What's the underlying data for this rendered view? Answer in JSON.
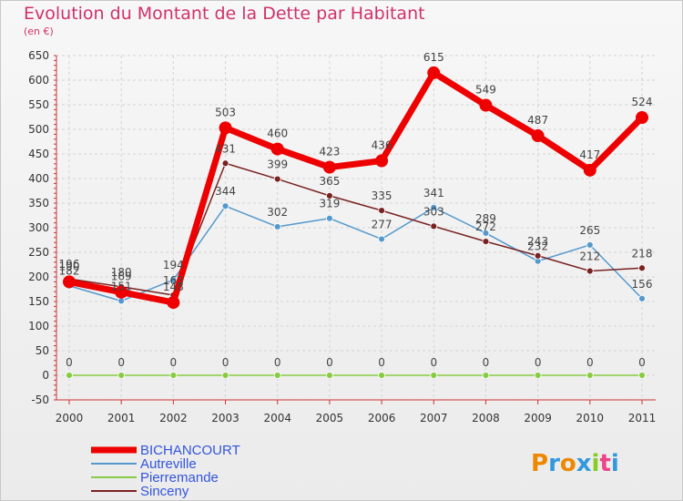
{
  "title": "Evolution du Montant de la Dette par Habitant",
  "subtitle": "(en €)",
  "logo": "Proxiti",
  "colors": {
    "title": "#d0306a",
    "bichancourt": "#ee0000",
    "autreville": "#5599cc",
    "pierremande": "#88cc44",
    "sinceny": "#7a2222",
    "legend_text": "#3355dd"
  },
  "chart_data": {
    "type": "line",
    "x": [
      "2000",
      "2001",
      "2002",
      "2003",
      "2004",
      "2005",
      "2006",
      "2007",
      "2008",
      "2009",
      "2010",
      "2011"
    ],
    "ylim": [
      -50,
      650
    ],
    "yticks": [
      -50,
      0,
      50,
      100,
      150,
      200,
      250,
      300,
      350,
      400,
      450,
      500,
      550,
      600,
      650
    ],
    "grid": true,
    "legend_position": "bottom-left",
    "series": [
      {
        "key": "pierremande",
        "name": "Pierremande",
        "values": [
          0,
          0,
          0,
          0,
          0,
          0,
          0,
          0,
          0,
          0,
          0,
          0
        ]
      },
      {
        "key": "autreville",
        "name": "Autreville",
        "values": [
          182,
          151,
          194,
          344,
          302,
          319,
          277,
          341,
          289,
          232,
          265,
          156
        ]
      },
      {
        "key": "sinceny",
        "name": "Sinceny",
        "values": [
          196,
          180,
          163,
          431,
          399,
          365,
          335,
          303,
          272,
          243,
          212,
          218
        ]
      },
      {
        "key": "bichancourt",
        "name": "BICHANCOURT",
        "values": [
          190,
          169,
          148,
          503,
          460,
          423,
          436,
          615,
          549,
          487,
          417,
          524
        ]
      }
    ]
  }
}
